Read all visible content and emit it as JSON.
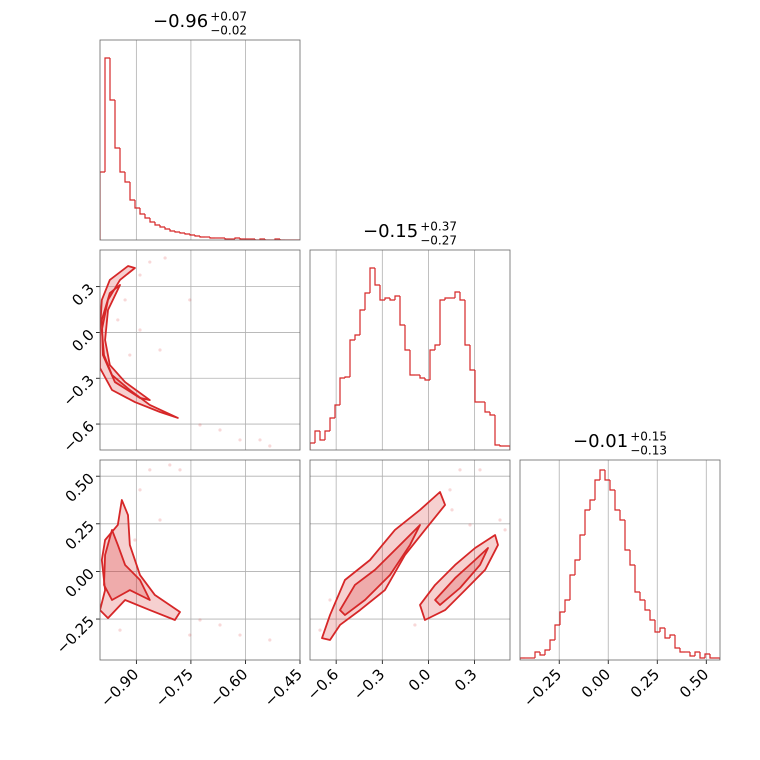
{
  "chart_data": [
    {
      "type": "histogram",
      "color": "#d62728",
      "grid": true,
      "title": {
        "main": "−0.96",
        "upper": "+0.07",
        "lower": "−0.02"
      },
      "xlim": [
        -1.0,
        -0.45
      ],
      "ylim": [
        0,
        200
      ],
      "xgrid": [
        -0.9,
        -0.75,
        -0.6
      ],
      "bins": [
        -1.0,
        -0.98625,
        -0.9725,
        -0.95875,
        -0.945,
        -0.93125,
        -0.9175,
        -0.90375,
        -0.89,
        -0.87625,
        -0.8625,
        -0.84875,
        -0.835,
        -0.82125,
        -0.8075,
        -0.79375,
        -0.78,
        -0.76625,
        -0.7525,
        -0.73875,
        -0.725,
        -0.71125,
        -0.6975,
        -0.68375,
        -0.67,
        -0.65625,
        -0.6425,
        -0.62875,
        -0.615,
        -0.60125,
        -0.5875,
        -0.57375,
        -0.56,
        -0.54625,
        -0.5325,
        -0.51875,
        -0.505,
        -0.49125,
        -0.4775,
        -0.46375,
        -0.45
      ],
      "counts": [
        68,
        182,
        140,
        92,
        68,
        58,
        40,
        32,
        26,
        22,
        18,
        15,
        13,
        11,
        9,
        8,
        7,
        6,
        5,
        4,
        3,
        3,
        2,
        2,
        2,
        1,
        1,
        2,
        1,
        1,
        1,
        0,
        1,
        0,
        0,
        1,
        0,
        0,
        0,
        0
      ]
    },
    {
      "type": "contour",
      "color": "#d62728",
      "grid": true,
      "xlim": [
        -1.0,
        -0.45
      ],
      "ylim": [
        -0.77,
        0.54
      ],
      "xgrid": [
        -0.9,
        -0.75,
        -0.6
      ],
      "yticks": [
        0.3,
        {
          "value": 0,
          "label": "0.0"
        },
        {
          "value": -0.3,
          "label": "−0.3"
        },
        {
          "value": -0.6,
          "label": "−0.6"
        }
      ],
      "contours": [
        {
          "x": [
            -0.904,
            -0.945,
            -0.978,
            -0.995,
            -0.989,
            -0.967,
            -0.918,
            -0.863,
            -0.786,
            -0.835,
            -0.904,
            -0.967,
            -1.0,
            -1.0,
            -0.995,
            -0.973,
            -0.923
          ],
          "y": [
            0.422,
            0.344,
            0.213,
            0.016,
            -0.148,
            -0.279,
            -0.377,
            -0.475,
            -0.56,
            -0.521,
            -0.456,
            -0.377,
            -0.233,
            0.016,
            0.213,
            0.344,
            0.435
          ]
        },
        {
          "x": [
            -0.945,
            -0.978,
            -0.986,
            -0.973,
            -0.931,
            -0.863,
            -0.89,
            -0.959,
            -0.992,
            -0.995,
            -0.973
          ],
          "y": [
            0.311,
            0.147,
            -0.05,
            -0.213,
            -0.325,
            -0.443,
            -0.429,
            -0.325,
            -0.148,
            0.082,
            0.258
          ]
        }
      ],
      "points": {
        "x": [
          -0.863,
          -0.821,
          -0.89,
          -0.931,
          -0.951,
          -0.89,
          -0.835,
          -0.725,
          -0.67,
          -0.615,
          -0.56,
          -0.533,
          -0.753,
          -0.918
        ],
        "y": [
          0.461,
          0.488,
          0.376,
          0.213,
          0.082,
          0.016,
          -0.115,
          -0.606,
          -0.639,
          -0.704,
          -0.704,
          -0.744,
          0.213,
          -0.148
        ]
      }
    },
    {
      "type": "histogram",
      "color": "#d62728",
      "grid": true,
      "title": {
        "main": "−0.15",
        "upper": "+0.37",
        "lower": "−0.27"
      },
      "xlim": [
        -0.77,
        0.53
      ],
      "ylim": [
        0,
        200
      ],
      "xgrid": [
        -0.6,
        -0.3,
        0,
        0.3
      ],
      "bins": [
        -0.77,
        -0.7375,
        -0.705,
        -0.6725,
        -0.64,
        -0.6075,
        -0.575,
        -0.5425,
        -0.51,
        -0.4775,
        -0.445,
        -0.4125,
        -0.38,
        -0.3475,
        -0.315,
        -0.2825,
        -0.25,
        -0.2175,
        -0.185,
        -0.1525,
        -0.12,
        -0.0875,
        -0.055,
        -0.0225,
        0.01,
        0.0425,
        0.075,
        0.1075,
        0.14,
        0.1725,
        0.205,
        0.2375,
        0.27,
        0.3025,
        0.335,
        0.3675,
        0.4,
        0.4325,
        0.465,
        0.4975,
        0.53
      ],
      "counts": [
        7,
        19,
        10,
        19,
        32,
        45,
        72,
        73,
        110,
        115,
        140,
        157,
        182,
        165,
        150,
        152,
        150,
        154,
        125,
        100,
        75,
        75,
        72,
        70,
        100,
        105,
        150,
        152,
        152,
        158,
        150,
        105,
        80,
        48,
        48,
        38,
        35,
        5,
        4,
        4
      ]
    },
    {
      "type": "contour",
      "color": "#d62728",
      "grid": true,
      "xlim": [
        -1.0,
        -0.45
      ],
      "ylim": [
        -0.465,
        0.585
      ],
      "xticks": [
        {
          "value": -0.9,
          "label": "−0.90"
        },
        {
          "value": -0.75,
          "label": "−0.75"
        },
        {
          "value": -0.6,
          "label": "−0.60"
        },
        {
          "value": -0.45,
          "label": "−0.45"
        }
      ],
      "yticks": [
        {
          "value": 0.5,
          "label": "0.50"
        },
        0.25,
        {
          "value": 0,
          "label": "0.00"
        },
        {
          "value": -0.25,
          "label": "−0.25"
        }
      ],
      "contours": [
        {
          "x": [
            -0.94,
            -0.951,
            -0.986,
            -0.995,
            -0.986,
            -1.0,
            -0.978,
            -0.931,
            -0.863,
            -0.794,
            -0.78,
            -0.849,
            -0.89,
            -0.918,
            -0.923
          ],
          "y": [
            0.375,
            0.244,
            0.165,
            0.06,
            -0.098,
            -0.203,
            -0.245,
            -0.15,
            -0.203,
            -0.255,
            -0.213,
            -0.124,
            -0.019,
            0.139,
            0.296
          ]
        },
        {
          "x": [
            -0.967,
            -0.986,
            -0.989,
            -0.967,
            -0.918,
            -0.863,
            -0.89,
            -0.931,
            -0.951
          ],
          "y": [
            0.218,
            0.086,
            -0.071,
            -0.15,
            -0.098,
            -0.15,
            -0.045,
            0.034,
            0.139
          ]
        }
      ],
      "points": {
        "x": [
          -0.863,
          -0.808,
          -0.89,
          -0.835,
          -0.904,
          -0.725,
          -0.67,
          -0.615,
          -0.533,
          -0.78,
          -0.753,
          -0.945
        ],
        "y": [
          0.533,
          0.559,
          0.428,
          0.27,
          0.165,
          -0.255,
          -0.281,
          -0.334,
          -0.36,
          0.533,
          -0.334,
          -0.308
        ]
      }
    },
    {
      "type": "contour",
      "color": "#d62728",
      "grid": true,
      "xlim": [
        -0.77,
        0.53
      ],
      "ylim": [
        -0.465,
        0.585
      ],
      "ygrid": [
        0.5,
        0.25,
        0,
        -0.25
      ],
      "xticks": [
        {
          "value": -0.6,
          "label": "−0.6"
        },
        {
          "value": -0.3,
          "label": "−0.3"
        },
        {
          "value": 0,
          "label": "0.0"
        },
        0.3
      ],
      "contours": [
        {
          "x": [
            -0.692,
            -0.64,
            -0.543,
            -0.38,
            -0.218,
            -0.055,
            0.075,
            0.108,
            -0.023,
            -0.153,
            -0.283,
            -0.445,
            -0.575,
            -0.64
          ],
          "y": [
            -0.35,
            -0.229,
            -0.045,
            0.06,
            0.218,
            0.323,
            0.417,
            0.349,
            0.218,
            0.086,
            -0.098,
            -0.203,
            -0.281,
            -0.36
          ]
        },
        {
          "x": [
            -0.575,
            -0.478,
            -0.348,
            -0.185,
            -0.055,
            -0.12,
            -0.25,
            -0.413,
            -0.543
          ],
          "y": [
            -0.203,
            -0.071,
            0.008,
            0.139,
            0.244,
            0.139,
            -0.019,
            -0.15,
            -0.229
          ]
        },
        {
          "x": [
            -0.055,
            0.043,
            0.173,
            0.303,
            0.433,
            0.452,
            0.368,
            0.238,
            0.108,
            -0.023
          ],
          "y": [
            -0.176,
            -0.071,
            0.034,
            0.123,
            0.191,
            0.139,
            0.008,
            -0.098,
            -0.203,
            -0.255
          ]
        },
        {
          "x": [
            0.043,
            0.173,
            0.303,
            0.387,
            0.335,
            0.205,
            0.075
          ],
          "y": [
            -0.15,
            -0.035,
            0.06,
            0.123,
            0.034,
            -0.087,
            -0.176
          ]
        }
      ],
      "points": {
        "x": [
          -0.705,
          0.14,
          0.153,
          0.205,
          0.335,
          0.465,
          0.498,
          -0.088,
          -0.64,
          0.27
        ],
        "y": [
          -0.308,
          0.428,
          0.323,
          0.533,
          0.533,
          0.27,
          0.218,
          -0.281,
          -0.15,
          0.244
        ]
      }
    },
    {
      "type": "histogram",
      "color": "#d62728",
      "grid": true,
      "title": {
        "main": "−0.01",
        "upper": "+0.15",
        "lower": "−0.13"
      },
      "xlim": [
        -0.45,
        0.57
      ],
      "ylim": [
        0,
        200
      ],
      "xticks": [
        {
          "value": -0.25,
          "label": "−0.25"
        },
        {
          "value": 0,
          "label": "0.00"
        },
        0.25,
        {
          "value": 0.5,
          "label": "0.50"
        }
      ],
      "bins": [
        -0.45,
        -0.4245,
        -0.399,
        -0.3735,
        -0.348,
        -0.3225,
        -0.297,
        -0.2715,
        -0.246,
        -0.2205,
        -0.195,
        -0.1695,
        -0.144,
        -0.1185,
        -0.093,
        -0.0675,
        -0.042,
        -0.0165,
        0.009,
        0.0345,
        0.06,
        0.0855,
        0.111,
        0.1365,
        0.162,
        0.1875,
        0.213,
        0.2385,
        0.264,
        0.2895,
        0.315,
        0.3405,
        0.366,
        0.3915,
        0.417,
        0.4425,
        0.468,
        0.4935,
        0.519,
        0.5445,
        0.57
      ],
      "counts": [
        2,
        2,
        2,
        8,
        5,
        10,
        20,
        35,
        48,
        60,
        85,
        100,
        125,
        150,
        160,
        180,
        190,
        180,
        170,
        150,
        140,
        110,
        95,
        68,
        60,
        50,
        40,
        28,
        32,
        22,
        25,
        12,
        8,
        8,
        4,
        8,
        2,
        6,
        2,
        2
      ]
    }
  ]
}
